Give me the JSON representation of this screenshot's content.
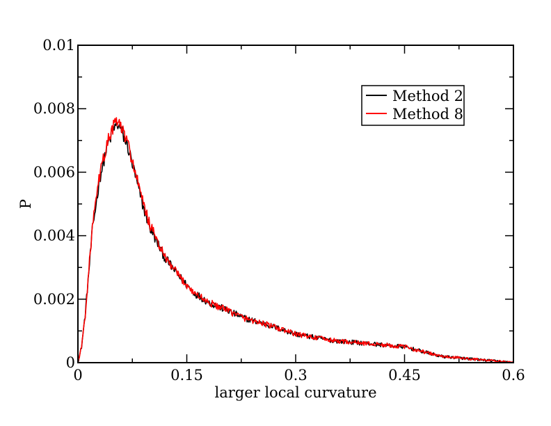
{
  "chart_data": {
    "type": "line",
    "title": "",
    "xlabel": "larger local curvature",
    "ylabel": "P",
    "xlim": [
      0,
      0.6
    ],
    "ylim": [
      0,
      0.01
    ],
    "x_ticks": [
      "0",
      "0.15",
      "0.3",
      "0.45",
      "0.6"
    ],
    "y_ticks": [
      "0",
      "0.002",
      "0.004",
      "0.006",
      "0.008",
      "0.01"
    ],
    "grid": false,
    "legend_position": "top-right",
    "noise": 0.00022,
    "series": [
      {
        "name": "Method 2",
        "color": "#000000",
        "x": [
          0,
          0.005,
          0.01,
          0.02,
          0.03,
          0.04,
          0.05,
          0.055,
          0.06,
          0.07,
          0.08,
          0.09,
          0.1,
          0.12,
          0.14,
          0.16,
          0.18,
          0.2,
          0.23,
          0.26,
          0.3,
          0.35,
          0.4,
          0.45,
          0.5,
          0.55,
          0.6
        ],
        "y": [
          0,
          0.0005,
          0.0015,
          0.0042,
          0.0058,
          0.0068,
          0.0074,
          0.0075,
          0.0073,
          0.0067,
          0.0058,
          0.0049,
          0.0042,
          0.0033,
          0.0027,
          0.0022,
          0.0019,
          0.0017,
          0.0014,
          0.0012,
          0.0009,
          0.0007,
          0.0006,
          0.0005,
          0.0002,
          0.0001,
          0.0
        ]
      },
      {
        "name": "Method 8",
        "color": "#ff0000",
        "x": [
          0,
          0.005,
          0.01,
          0.02,
          0.03,
          0.04,
          0.05,
          0.055,
          0.06,
          0.07,
          0.08,
          0.09,
          0.1,
          0.12,
          0.14,
          0.16,
          0.18,
          0.2,
          0.23,
          0.26,
          0.3,
          0.35,
          0.4,
          0.45,
          0.5,
          0.55,
          0.6
        ],
        "y": [
          0,
          0.0005,
          0.0015,
          0.0043,
          0.0059,
          0.0069,
          0.0075,
          0.0076,
          0.0074,
          0.0068,
          0.0059,
          0.005,
          0.0043,
          0.0033,
          0.0027,
          0.0022,
          0.0019,
          0.0017,
          0.0014,
          0.0012,
          0.0009,
          0.0007,
          0.0006,
          0.0005,
          0.0002,
          0.0001,
          0.0
        ]
      }
    ]
  }
}
